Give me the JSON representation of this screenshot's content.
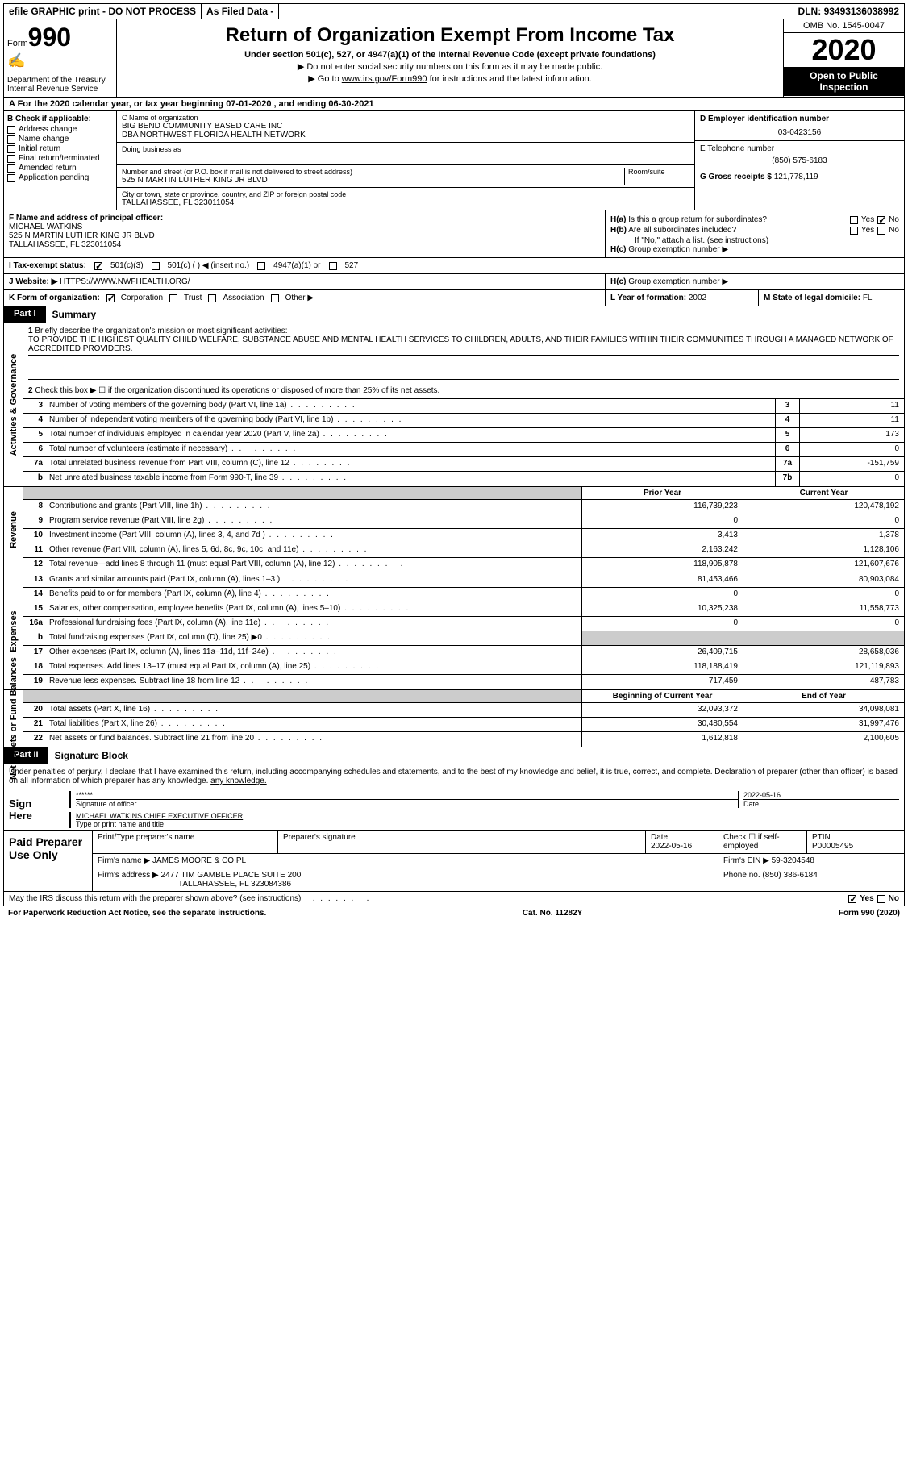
{
  "top_bar": {
    "efile": "efile GRAPHIC print - DO NOT PROCESS",
    "as_filed": "As Filed Data -",
    "dln_label": "DLN:",
    "dln": "93493136038992"
  },
  "header": {
    "form_label": "Form",
    "form_number": "990",
    "dept": "Department of the Treasury",
    "irs": "Internal Revenue Service",
    "title": "Return of Organization Exempt From Income Tax",
    "subtitle": "Under section 501(c), 527, or 4947(a)(1) of the Internal Revenue Code (except private foundations)",
    "note1": "▶ Do not enter social security numbers on this form as it may be made public.",
    "note2_prefix": "▶ Go to ",
    "note2_link": "www.irs.gov/Form990",
    "note2_suffix": " for instructions and the latest information.",
    "omb": "OMB No. 1545-0047",
    "year": "2020",
    "open_public": "Open to Public Inspection"
  },
  "row_a": "A   For the 2020 calendar year, or tax year beginning 07-01-2020   , and ending 06-30-2021",
  "col_b": {
    "label": "B Check if applicable:",
    "items": [
      "Address change",
      "Name change",
      "Initial return",
      "Final return/terminated",
      "Amended return",
      "Application pending"
    ]
  },
  "col_c": {
    "name_label": "C Name of organization",
    "name1": "BIG BEND COMMUNITY BASED CARE INC",
    "name2": "DBA NORTHWEST FLORIDA HEALTH NETWORK",
    "dba_label": "Doing business as",
    "street_label": "Number and street (or P.O. box if mail is not delivered to street address)",
    "room_label": "Room/suite",
    "street": "525 N MARTIN LUTHER KING JR BLVD",
    "city_label": "City or town, state or province, country, and ZIP or foreign postal code",
    "city": "TALLAHASSEE, FL  323011054"
  },
  "col_d": {
    "label": "D Employer identification number",
    "ein": "03-0423156"
  },
  "col_e": {
    "label": "E Telephone number",
    "phone": "(850) 575-6183"
  },
  "col_g": {
    "label": "G Gross receipts $",
    "amount": "121,778,119"
  },
  "col_f": {
    "label": "F  Name and address of principal officer:",
    "name": "MICHAEL WATKINS",
    "street": "525 N MARTIN LUTHER KING JR BLVD",
    "city": "TALLAHASSEE, FL  323011054"
  },
  "col_h": {
    "ha_label": "H(a)",
    "ha_text": "Is this a group return for subordinates?",
    "hb_label": "H(b)",
    "hb_text": "Are all subordinates included?",
    "hb_note": "If \"No,\" attach a list. (see instructions)",
    "hc_label": "H(c)",
    "hc_text": "Group exemption number ▶",
    "yes": "Yes",
    "no": "No"
  },
  "row_i": {
    "label": "I   Tax-exempt status:",
    "opt1": "501(c)(3)",
    "opt2": "501(c) (   ) ◀ (insert no.)",
    "opt3": "4947(a)(1) or",
    "opt4": "527"
  },
  "row_j": {
    "label": "J   Website: ▶",
    "url": "HTTPS://WWW.NWFHEALTH.ORG/"
  },
  "row_k": {
    "label": "K Form of organization:",
    "opts": [
      "Corporation",
      "Trust",
      "Association",
      "Other ▶"
    ],
    "l_label": "L Year of formation:",
    "l_val": "2002",
    "m_label": "M State of legal domicile:",
    "m_val": "FL"
  },
  "part1": {
    "tab": "Part I",
    "title": "Summary"
  },
  "side_labels": {
    "governance": "Activities & Governance",
    "revenue": "Revenue",
    "expenses": "Expenses",
    "net": "Net Assets or Fund Balances"
  },
  "governance": {
    "line1_label": "Briefly describe the organization's mission or most significant activities:",
    "line1_text": "TO PROVIDE THE HIGHEST QUALITY CHILD WELFARE, SUBSTANCE ABUSE AND MENTAL HEALTH SERVICES TO CHILDREN, ADULTS, AND THEIR FAMILIES WITHIN THEIR COMMUNITIES THROUGH A MANAGED NETWORK OF ACCREDITED PROVIDERS.",
    "line2": "Check this box ▶ ☐ if the organization discontinued its operations or disposed of more than 25% of its net assets.",
    "rows": [
      {
        "num": "3",
        "label": "Number of voting members of the governing body (Part VI, line 1a)",
        "box": "3",
        "val": "11"
      },
      {
        "num": "4",
        "label": "Number of independent voting members of the governing body (Part VI, line 1b)",
        "box": "4",
        "val": "11"
      },
      {
        "num": "5",
        "label": "Total number of individuals employed in calendar year 2020 (Part V, line 2a)",
        "box": "5",
        "val": "173"
      },
      {
        "num": "6",
        "label": "Total number of volunteers (estimate if necessary)",
        "box": "6",
        "val": "0"
      },
      {
        "num": "7a",
        "label": "Total unrelated business revenue from Part VIII, column (C), line 12",
        "box": "7a",
        "val": "-151,759"
      },
      {
        "num": "b",
        "label": "Net unrelated business taxable income from Form 990-T, line 39",
        "box": "7b",
        "val": "0"
      }
    ]
  },
  "col_headers": {
    "prior": "Prior Year",
    "current": "Current Year",
    "beginning": "Beginning of Current Year",
    "end": "End of Year"
  },
  "revenue_rows": [
    {
      "num": "8",
      "label": "Contributions and grants (Part VIII, line 1h)",
      "prior": "116,739,223",
      "current": "120,478,192"
    },
    {
      "num": "9",
      "label": "Program service revenue (Part VIII, line 2g)",
      "prior": "0",
      "current": "0"
    },
    {
      "num": "10",
      "label": "Investment income (Part VIII, column (A), lines 3, 4, and 7d )",
      "prior": "3,413",
      "current": "1,378"
    },
    {
      "num": "11",
      "label": "Other revenue (Part VIII, column (A), lines 5, 6d, 8c, 9c, 10c, and 11e)",
      "prior": "2,163,242",
      "current": "1,128,106"
    },
    {
      "num": "12",
      "label": "Total revenue—add lines 8 through 11 (must equal Part VIII, column (A), line 12)",
      "prior": "118,905,878",
      "current": "121,607,676"
    }
  ],
  "expense_rows": [
    {
      "num": "13",
      "label": "Grants and similar amounts paid (Part IX, column (A), lines 1–3 )",
      "prior": "81,453,466",
      "current": "80,903,084"
    },
    {
      "num": "14",
      "label": "Benefits paid to or for members (Part IX, column (A), line 4)",
      "prior": "0",
      "current": "0"
    },
    {
      "num": "15",
      "label": "Salaries, other compensation, employee benefits (Part IX, column (A), lines 5–10)",
      "prior": "10,325,238",
      "current": "11,558,773"
    },
    {
      "num": "16a",
      "label": "Professional fundraising fees (Part IX, column (A), line 11e)",
      "prior": "0",
      "current": "0"
    },
    {
      "num": "b",
      "label": "Total fundraising expenses (Part IX, column (D), line 25) ▶0",
      "prior": "",
      "current": "",
      "shaded": true
    },
    {
      "num": "17",
      "label": "Other expenses (Part IX, column (A), lines 11a–11d, 11f–24e)",
      "prior": "26,409,715",
      "current": "28,658,036"
    },
    {
      "num": "18",
      "label": "Total expenses. Add lines 13–17 (must equal Part IX, column (A), line 25)",
      "prior": "118,188,419",
      "current": "121,119,893"
    },
    {
      "num": "19",
      "label": "Revenue less expenses. Subtract line 18 from line 12",
      "prior": "717,459",
      "current": "487,783"
    }
  ],
  "net_rows": [
    {
      "num": "20",
      "label": "Total assets (Part X, line 16)",
      "prior": "32,093,372",
      "current": "34,098,081"
    },
    {
      "num": "21",
      "label": "Total liabilities (Part X, line 26)",
      "prior": "30,480,554",
      "current": "31,997,476"
    },
    {
      "num": "22",
      "label": "Net assets or fund balances. Subtract line 21 from line 20",
      "prior": "1,612,818",
      "current": "2,100,605"
    }
  ],
  "part2": {
    "tab": "Part II",
    "title": "Signature Block"
  },
  "sig": {
    "intro": "Under penalties of perjury, I declare that I have examined this return, including accompanying schedules and statements, and to the best of my knowledge and belief, it is true, correct, and complete. Declaration of preparer (other than officer) is based on all information of which preparer has any knowledge.",
    "sign_here": "Sign Here",
    "stars": "******",
    "sig_label": "Signature of officer",
    "date": "2022-05-16",
    "date_label": "Date",
    "name": "MICHAEL WATKINS  CHIEF EXECUTIVE OFFICER",
    "name_label": "Type or print name and title"
  },
  "preparer": {
    "title": "Paid Preparer Use Only",
    "col1": "Print/Type preparer's name",
    "col2": "Preparer's signature",
    "col3_label": "Date",
    "col3_val": "2022-05-16",
    "col4_label": "Check ☐ if self-employed",
    "col5_label": "PTIN",
    "col5_val": "P00005495",
    "firm_name_label": "Firm's name     ▶",
    "firm_name": "JAMES MOORE & CO PL",
    "firm_ein_label": "Firm's EIN ▶",
    "firm_ein": "59-3204548",
    "firm_addr_label": "Firm's address ▶",
    "firm_addr1": "2477 TIM GAMBLE PLACE SUITE 200",
    "firm_addr2": "TALLAHASSEE, FL  323084386",
    "phone_label": "Phone no.",
    "phone": "(850) 386-6184"
  },
  "footer": {
    "q": "May the IRS discuss this return with the preparer shown above? (see instructions)",
    "yes": "Yes",
    "no": "No",
    "paperwork": "For Paperwork Reduction Act Notice, see the separate instructions.",
    "cat": "Cat. No. 11282Y",
    "form": "Form 990 (2020)"
  }
}
